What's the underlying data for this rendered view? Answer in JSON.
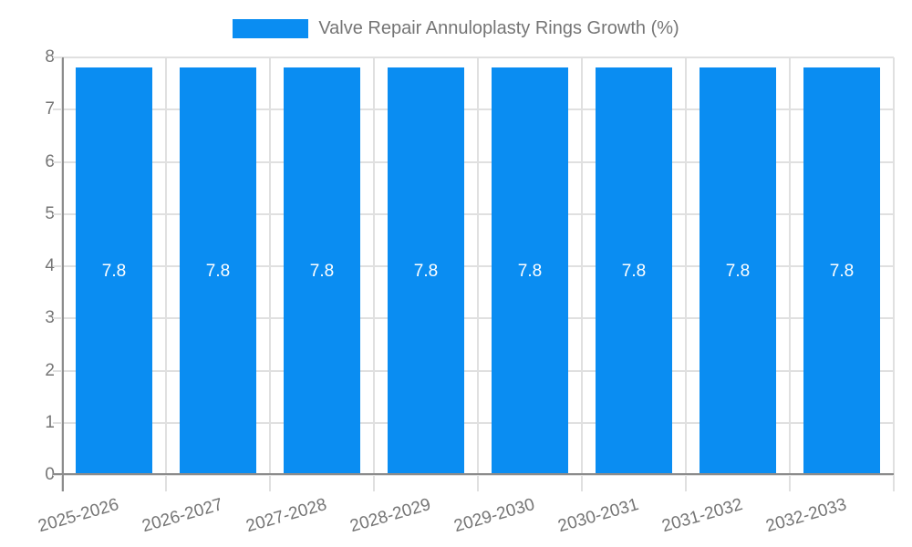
{
  "chart_data": {
    "type": "bar",
    "title": "Valve Repair Annuloplasty Rings Growth (%)",
    "categories": [
      "2025-2026",
      "2026-2027",
      "2027-2028",
      "2028-2029",
      "2029-2030",
      "2030-2031",
      "2031-2032",
      "2032-2033"
    ],
    "series": [
      {
        "name": "Valve Repair Annuloplasty Rings Growth (%)",
        "values": [
          7.8,
          7.8,
          7.8,
          7.8,
          7.8,
          7.8,
          7.8,
          7.8
        ]
      }
    ],
    "bar_labels": [
      "7.8",
      "7.8",
      "7.8",
      "7.8",
      "7.8",
      "7.8",
      "7.8",
      "7.8"
    ],
    "xlabel": "",
    "ylabel": "",
    "ylim": [
      0,
      8
    ],
    "yticks": [
      0,
      1,
      2,
      3,
      4,
      5,
      6,
      7,
      8
    ],
    "grid": true,
    "legend_position": "top",
    "x_tick_rotation_deg": -16,
    "colors": {
      "bar": "#0a8df2",
      "grid_line": "#e0e0e0",
      "axis_line": "#8c8c8c",
      "tick_text": "#757575",
      "bar_label_text": "#ffffff",
      "background": "#ffffff"
    }
  }
}
